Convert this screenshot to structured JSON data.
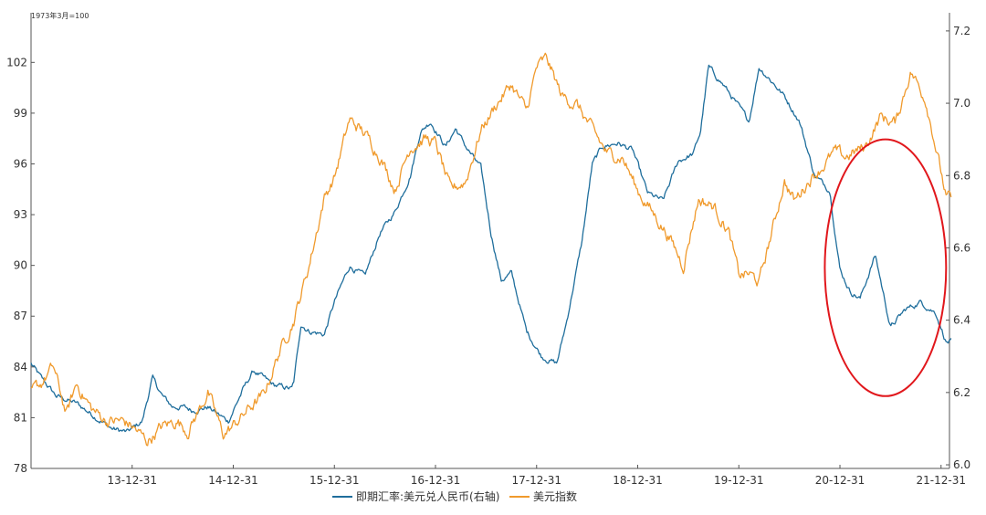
{
  "chart_data": {
    "type": "line",
    "title": "",
    "note": "1973年3月=100",
    "x_tick_labels": [
      "13-12-31",
      "14-12-31",
      "15-12-31",
      "16-12-31",
      "17-12-31",
      "18-12-31",
      "19-12-31",
      "20-12-31",
      "21-12-31"
    ],
    "x_range": [
      "2013-01",
      "2022-02"
    ],
    "left_axis": {
      "range": [
        78,
        104.5
      ],
      "ticks": [
        78,
        81,
        84,
        87,
        90,
        93,
        96,
        99,
        102
      ]
    },
    "right_axis": {
      "range": [
        5.99,
        7.23
      ],
      "ticks": [
        6.0,
        6.2,
        6.4,
        6.6,
        6.8,
        7.0,
        7.2
      ]
    },
    "series": [
      {
        "name": "即期汇率:美元兑人民币(右轴)",
        "axis": "right",
        "color": "#1f6e9c",
        "x": [
          2013.0,
          2013.1,
          2013.25,
          2013.45,
          2013.65,
          2013.8,
          2013.95,
          2014.1,
          2014.2,
          2014.3,
          2014.4,
          2014.5,
          2014.6,
          2014.75,
          2014.85,
          2014.95,
          2015.1,
          2015.2,
          2015.4,
          2015.58,
          2015.6,
          2015.67,
          2015.75,
          2015.9,
          2016.0,
          2016.15,
          2016.3,
          2016.45,
          2016.6,
          2016.75,
          2016.85,
          2016.95,
          2017.1,
          2017.2,
          2017.3,
          2017.45,
          2017.55,
          2017.65,
          2017.75,
          2017.9,
          2018.05,
          2018.2,
          2018.3,
          2018.45,
          2018.55,
          2018.65,
          2018.8,
          2018.95,
          2019.1,
          2019.25,
          2019.4,
          2019.55,
          2019.62,
          2019.7,
          2019.85,
          2020.0,
          2020.1,
          2020.2,
          2020.33,
          2020.45,
          2020.6,
          2020.75,
          2020.9,
          2021.0,
          2021.1,
          2021.2,
          2021.35,
          2021.5,
          2021.65,
          2021.8,
          2021.95,
          2022.05,
          2022.1
        ],
        "values": [
          6.28,
          6.24,
          6.19,
          6.17,
          6.13,
          6.1,
          6.09,
          6.12,
          6.24,
          6.19,
          6.16,
          6.16,
          6.15,
          6.16,
          6.14,
          6.12,
          6.21,
          6.26,
          6.22,
          6.21,
          6.23,
          6.39,
          6.37,
          6.36,
          6.45,
          6.55,
          6.52,
          6.64,
          6.7,
          6.8,
          6.92,
          6.95,
          6.88,
          6.93,
          6.88,
          6.82,
          6.64,
          6.51,
          6.53,
          6.37,
          6.3,
          6.28,
          6.4,
          6.62,
          6.83,
          6.88,
          6.89,
          6.87,
          6.75,
          6.73,
          6.84,
          6.86,
          6.92,
          7.1,
          7.05,
          6.99,
          6.95,
          7.1,
          7.06,
          7.02,
          6.95,
          6.8,
          6.76,
          6.54,
          6.48,
          6.46,
          6.58,
          6.38,
          6.43,
          6.45,
          6.42,
          6.34,
          6.34
        ]
      },
      {
        "name": "美元指数",
        "axis": "left",
        "color": "#f09a2c",
        "x": [
          2013.0,
          2013.1,
          2013.22,
          2013.35,
          2013.45,
          2013.6,
          2013.75,
          2013.9,
          2014.0,
          2014.15,
          2014.3,
          2014.45,
          2014.55,
          2014.65,
          2014.75,
          2014.9,
          2015.0,
          2015.15,
          2015.3,
          2015.45,
          2015.6,
          2015.75,
          2015.9,
          2016.0,
          2016.15,
          2016.3,
          2016.45,
          2016.6,
          2016.75,
          2016.9,
          2017.0,
          2017.15,
          2017.3,
          2017.45,
          2017.6,
          2017.75,
          2017.9,
          2018.0,
          2018.1,
          2018.25,
          2018.4,
          2018.55,
          2018.7,
          2018.85,
          2019.0,
          2019.15,
          2019.3,
          2019.45,
          2019.6,
          2019.75,
          2019.9,
          2020.0,
          2020.1,
          2020.2,
          2020.35,
          2020.45,
          2020.55,
          2020.7,
          2020.85,
          2020.95,
          2021.05,
          2021.25,
          2021.4,
          2021.55,
          2021.7,
          2021.85,
          2021.95,
          2022.05,
          2022.1
        ],
        "values": [
          82.5,
          83.0,
          84.0,
          81.2,
          83.0,
          81.5,
          80.8,
          80.8,
          80.5,
          79.6,
          80.5,
          80.8,
          80.2,
          81.3,
          82.5,
          80.0,
          80.5,
          81.5,
          82.3,
          84.8,
          86.8,
          90.0,
          94.0,
          95.2,
          98.6,
          97.8,
          96.5,
          94.5,
          97.0,
          97.5,
          97.2,
          94.4,
          95.0,
          98.0,
          99.5,
          100.7,
          99.1,
          101.7,
          102.2,
          100.0,
          99.5,
          98.0,
          96.6,
          96.4,
          94.4,
          93.1,
          91.8,
          90.0,
          93.9,
          93.5,
          92.0,
          89.4,
          89.5,
          89.0,
          92.5,
          95.0,
          93.8,
          95.1,
          96.0,
          96.7,
          96.4,
          97.0,
          98.8,
          98.4,
          101.5,
          99.8,
          97.0,
          94.0,
          93.9
        ]
      }
    ],
    "annotations": [
      {
        "type": "ellipse",
        "color": "#e1171c",
        "x_range": [
          2020.85,
          2022.05
        ],
        "y_right_range": [
          6.19,
          6.9
        ]
      }
    ],
    "legend_position": "bottom-center",
    "grid": false
  }
}
